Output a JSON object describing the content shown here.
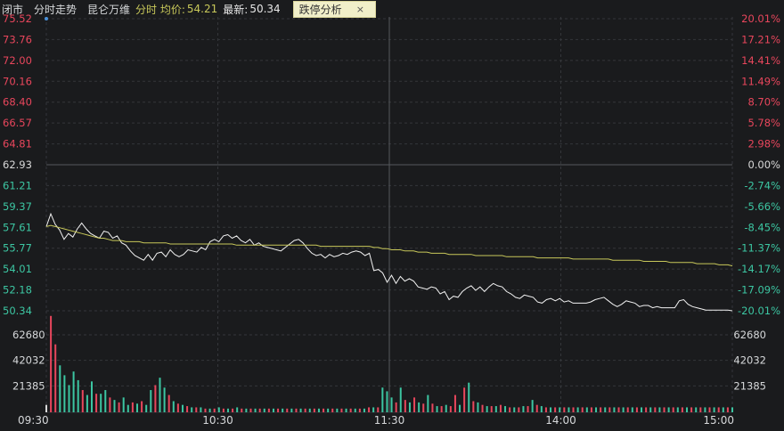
{
  "header": {
    "status": "闭市",
    "view": "分时走势",
    "stock_name": "昆仑万维",
    "avg_label": "分时 均价:",
    "avg_value": "54.21",
    "last_label": "最新:",
    "last_value": "50.34",
    "analysis_button": "跌停分析",
    "close_symbol": "×"
  },
  "colors": {
    "background": "#1a1b1d",
    "grid": "#34363a",
    "up": "#e8465c",
    "down": "#3cc6a2",
    "neutral": "#d8d8d8",
    "price_line": "#f2f2f2",
    "avg_line": "#c8c85a"
  },
  "chart_data": {
    "type": "line",
    "prev_close": 62.93,
    "ylim": [
      50.34,
      75.52
    ],
    "price_ticks": [
      "75.52",
      "73.76",
      "72.00",
      "70.16",
      "68.40",
      "66.57",
      "64.81",
      "62.93",
      "61.21",
      "59.37",
      "57.61",
      "55.77",
      "54.01",
      "52.18",
      "50.34"
    ],
    "pct_ticks": [
      "20.01%",
      "17.21%",
      "14.41%",
      "11.49%",
      "8.70%",
      "5.78%",
      "2.98%",
      "0.00%",
      "-2.74%",
      "-5.66%",
      "-8.45%",
      "-11.37%",
      "-14.17%",
      "-17.09%",
      "-20.01%"
    ],
    "time_labels": [
      "09:30",
      "10:30",
      "11:30",
      "14:00",
      "15:00"
    ],
    "volume_ticks": [
      "62680",
      "42032",
      "21385"
    ],
    "volume_max": 80000,
    "series": [
      {
        "values": [
          57.6,
          58.7,
          57.8,
          57.3,
          56.5,
          57.0,
          56.7,
          57.4,
          57.9,
          57.4,
          57.0,
          56.8,
          56.6,
          57.2,
          57.1,
          56.6,
          56.8,
          56.2,
          56.0,
          55.5,
          55.1,
          54.9,
          54.7,
          55.2,
          54.7,
          55.3,
          55.4,
          55.0,
          55.6,
          55.2,
          55.0,
          55.2,
          55.6,
          55.5,
          55.4,
          55.8,
          55.6,
          56.3,
          56.5,
          56.3,
          56.8,
          56.9,
          56.6,
          56.8,
          56.4,
          56.2,
          56.5,
          56.0,
          56.2,
          55.9,
          55.8,
          55.7,
          55.6,
          55.5,
          55.8,
          56.1,
          56.4,
          56.5,
          56.2,
          55.7,
          55.3,
          55.1,
          55.2,
          54.9,
          55.2,
          55.0,
          55.1,
          55.3,
          55.2,
          55.4,
          55.5,
          55.4,
          55.1,
          55.3,
          53.8,
          53.9,
          53.6,
          52.8,
          53.4,
          52.7,
          53.3,
          52.9,
          53.1,
          52.9,
          52.4,
          52.3,
          52.2,
          52.4,
          52.3,
          51.8,
          52.0,
          51.3,
          51.6,
          51.5,
          52.0,
          52.3,
          52.5,
          52.1,
          52.4,
          52.0,
          52.4,
          52.7,
          52.5,
          52.4,
          52.0,
          51.8,
          51.5,
          51.4,
          51.7,
          51.6,
          51.5,
          51.1,
          51.0,
          51.3,
          51.4,
          51.2,
          51.4,
          51.1,
          51.2,
          51.0,
          51.0,
          51.0,
          51.0,
          51.1,
          51.3,
          51.4,
          51.5,
          51.2,
          50.9,
          50.7,
          50.9,
          51.2,
          51.1,
          51.0,
          50.7,
          50.8,
          50.8,
          50.6,
          50.7,
          50.6,
          50.6,
          50.6,
          50.6,
          51.2,
          51.3,
          50.9,
          50.7,
          50.6,
          50.5,
          50.4,
          50.4,
          50.4,
          50.4,
          50.4,
          50.4,
          50.34
        ]
      },
      {
        "values": [
          57.6,
          57.7,
          57.6,
          57.5,
          57.4,
          57.3,
          57.2,
          57.1,
          57.0,
          56.9,
          56.8,
          56.7,
          56.6,
          56.6,
          56.5,
          56.4,
          56.4,
          56.4,
          56.3,
          56.3,
          56.3,
          56.3,
          56.2,
          56.2,
          56.2,
          56.2,
          56.2,
          56.2,
          56.1,
          56.1,
          56.1,
          56.1,
          56.1,
          56.1,
          56.1,
          56.1,
          56.1,
          56.1,
          56.1,
          56.1,
          56.1,
          56.1,
          56.1,
          56.0,
          56.0,
          56.0,
          56.0,
          56.0,
          56.0,
          56.0,
          56.0,
          56.0,
          56.0,
          56.0,
          56.0,
          56.0,
          56.0,
          56.0,
          56.0,
          56.0,
          56.0,
          56.0,
          55.9,
          55.9,
          55.9,
          55.9,
          55.9,
          55.9,
          55.9,
          55.9,
          55.9,
          55.9,
          55.9,
          55.9,
          55.8,
          55.8,
          55.7,
          55.7,
          55.6,
          55.6,
          55.6,
          55.5,
          55.5,
          55.5,
          55.4,
          55.4,
          55.4,
          55.3,
          55.3,
          55.3,
          55.3,
          55.2,
          55.2,
          55.2,
          55.2,
          55.2,
          55.2,
          55.1,
          55.1,
          55.1,
          55.1,
          55.1,
          55.1,
          55.1,
          55.0,
          55.0,
          55.0,
          55.0,
          55.0,
          55.0,
          55.0,
          54.9,
          54.9,
          54.9,
          54.9,
          54.9,
          54.9,
          54.9,
          54.9,
          54.8,
          54.8,
          54.8,
          54.8,
          54.8,
          54.8,
          54.8,
          54.8,
          54.8,
          54.7,
          54.7,
          54.7,
          54.7,
          54.7,
          54.7,
          54.7,
          54.6,
          54.6,
          54.6,
          54.6,
          54.6,
          54.6,
          54.5,
          54.5,
          54.5,
          54.5,
          54.5,
          54.5,
          54.4,
          54.4,
          54.4,
          54.4,
          54.4,
          54.3,
          54.3,
          54.3,
          54.21
        ]
      }
    ],
    "volume": [
      6,
      78,
      55,
      38,
      30,
      22,
      33,
      26,
      18,
      14,
      25,
      15,
      15,
      18,
      12,
      10,
      8,
      12,
      6,
      8,
      7,
      9,
      6,
      18,
      22,
      28,
      20,
      14,
      9,
      7,
      6,
      5,
      4,
      4,
      4,
      3,
      3,
      3,
      4,
      3,
      3,
      3,
      4,
      3,
      3,
      3,
      3,
      3,
      3,
      3,
      3,
      3,
      3,
      3,
      3,
      3,
      3,
      3,
      3,
      3,
      3,
      3,
      3,
      3,
      3,
      3,
      3,
      3,
      3,
      3,
      3,
      4,
      4,
      4,
      20,
      17,
      12,
      8,
      20,
      10,
      8,
      12,
      8,
      7,
      14,
      7,
      5,
      5,
      6,
      5,
      14,
      6,
      20,
      24,
      9,
      8,
      6,
      5,
      5,
      5,
      6,
      5,
      4,
      4,
      4,
      5,
      5,
      10,
      6,
      5,
      4,
      4,
      4,
      4,
      4,
      4,
      4,
      4,
      4,
      4,
      4,
      4,
      4,
      4,
      4,
      4,
      4,
      4,
      4,
      4,
      4,
      4,
      4,
      4,
      4,
      4,
      4,
      4,
      4,
      4,
      4,
      4,
      4,
      4,
      4,
      4,
      4,
      4,
      4,
      4,
      4,
      4
    ],
    "volume_dir": [
      "n",
      "u",
      "u",
      "d",
      "d",
      "d",
      "d",
      "d",
      "u",
      "d",
      "d",
      "u",
      "d",
      "d",
      "u",
      "d",
      "u",
      "d",
      "d",
      "u",
      "d",
      "u",
      "d",
      "d",
      "u",
      "d",
      "d",
      "u",
      "d",
      "u",
      "d",
      "u",
      "d",
      "u",
      "d",
      "u",
      "d",
      "u",
      "d",
      "u",
      "d",
      "u",
      "d",
      "u",
      "d",
      "u",
      "d",
      "u",
      "d",
      "u",
      "d",
      "u",
      "d",
      "u",
      "d",
      "u",
      "d",
      "u",
      "d",
      "u",
      "d",
      "u",
      "d",
      "u",
      "d",
      "u",
      "d",
      "u",
      "d",
      "u",
      "d",
      "u",
      "d",
      "u",
      "d",
      "d",
      "d",
      "u",
      "d",
      "u",
      "d",
      "u",
      "d",
      "u",
      "d",
      "u",
      "d",
      "u",
      "d",
      "u",
      "u",
      "d",
      "u",
      "d",
      "u",
      "d",
      "u",
      "d",
      "u",
      "d",
      "u",
      "d",
      "u",
      "d",
      "u",
      "d",
      "u",
      "d",
      "u",
      "d",
      "u",
      "d",
      "u",
      "d",
      "u",
      "d",
      "u",
      "d",
      "u",
      "d",
      "u",
      "d",
      "u",
      "d",
      "u",
      "d",
      "u",
      "d",
      "u",
      "d",
      "u",
      "d",
      "u",
      "d",
      "u",
      "d",
      "u",
      "d",
      "u",
      "d",
      "u",
      "d",
      "u",
      "d",
      "u",
      "d",
      "u",
      "d",
      "u",
      "d",
      "u",
      "d",
      "u",
      "d",
      "u",
      "d",
      "u",
      "d"
    ]
  }
}
